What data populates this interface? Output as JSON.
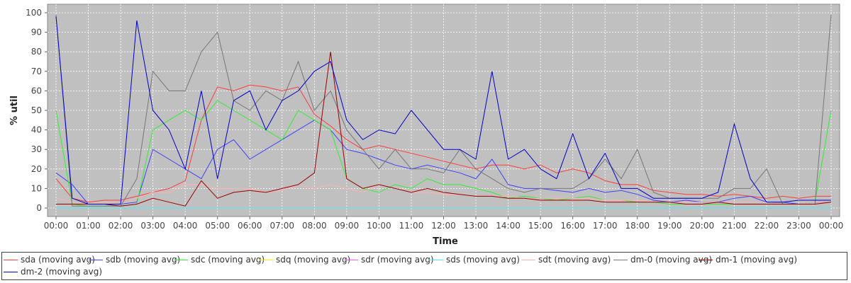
{
  "chart_data": {
    "type": "line",
    "title": "",
    "xlabel": "Time",
    "ylabel": "% util",
    "ylim": [
      0,
      100
    ],
    "xlim": [
      "00:00",
      "24:00"
    ],
    "grid": true,
    "legend_position": "bottom",
    "x_ticks": [
      "00:00",
      "01:00",
      "02:00",
      "03:00",
      "04:00",
      "05:00",
      "06:00",
      "07:00",
      "08:00",
      "09:00",
      "10:00",
      "11:00",
      "12:00",
      "13:00",
      "14:00",
      "15:00",
      "16:00",
      "17:00",
      "18:00",
      "19:00",
      "20:00",
      "21:00",
      "22:00",
      "23:00",
      "00:00"
    ],
    "y_ticks": [
      0,
      10,
      20,
      30,
      40,
      50,
      60,
      70,
      80,
      90,
      100
    ],
    "x": [
      "00:00",
      "00:30",
      "01:00",
      "01:30",
      "02:00",
      "02:30",
      "03:00",
      "03:30",
      "04:00",
      "04:30",
      "05:00",
      "05:30",
      "06:00",
      "06:30",
      "07:00",
      "07:30",
      "08:00",
      "08:30",
      "09:00",
      "09:30",
      "10:00",
      "10:30",
      "11:00",
      "11:30",
      "12:00",
      "12:30",
      "13:00",
      "13:30",
      "14:00",
      "14:30",
      "15:00",
      "15:30",
      "16:00",
      "16:30",
      "17:00",
      "17:30",
      "18:00",
      "18:30",
      "19:00",
      "19:30",
      "20:00",
      "20:30",
      "21:00",
      "21:30",
      "22:00",
      "22:30",
      "23:00",
      "23:30",
      "24:00"
    ],
    "series": [
      {
        "name": "sda (moving avg)",
        "color": "#ff3b3b",
        "values": [
          15,
          5,
          3,
          4,
          4,
          6,
          8,
          10,
          14,
          45,
          62,
          60,
          63,
          62,
          60,
          62,
          48,
          42,
          35,
          30,
          32,
          30,
          28,
          26,
          24,
          22,
          20,
          22,
          22,
          20,
          22,
          18,
          20,
          18,
          14,
          12,
          12,
          9,
          8,
          7,
          7,
          6,
          7,
          6,
          5,
          6,
          5,
          6,
          6
        ]
      },
      {
        "name": "sdb (moving avg)",
        "color": "#4040ff",
        "values": [
          18,
          12,
          2,
          2,
          2,
          3,
          30,
          25,
          20,
          15,
          30,
          35,
          25,
          30,
          35,
          40,
          45,
          40,
          30,
          28,
          25,
          22,
          20,
          22,
          20,
          18,
          15,
          25,
          12,
          10,
          10,
          9,
          8,
          10,
          8,
          9,
          7,
          4,
          3,
          4,
          3,
          3,
          5,
          6,
          3,
          3,
          2,
          3,
          3
        ]
      },
      {
        "name": "sdc (moving avg)",
        "color": "#33ee33",
        "values": [
          50,
          2,
          1,
          1,
          1,
          2,
          40,
          45,
          50,
          45,
          55,
          50,
          45,
          40,
          35,
          50,
          45,
          40,
          15,
          10,
          8,
          12,
          10,
          15,
          12,
          12,
          10,
          8,
          5,
          6,
          5,
          4,
          5,
          6,
          4,
          4,
          3,
          3,
          2,
          2,
          2,
          2,
          2,
          2,
          2,
          2,
          2,
          3,
          50
        ]
      },
      {
        "name": "sdq (moving avg)",
        "color": "#ffee00",
        "values": [
          0,
          0,
          0,
          0,
          0,
          0,
          0,
          0,
          0,
          0,
          0,
          0,
          0,
          0,
          0,
          0,
          0,
          0,
          0,
          0,
          0,
          0,
          0,
          0,
          0,
          0,
          0,
          0,
          0,
          0,
          0,
          0,
          0,
          0,
          0,
          0,
          0,
          0,
          0,
          0,
          0,
          0,
          0,
          0,
          0,
          0,
          0,
          0,
          0
        ]
      },
      {
        "name": "sdr (moving avg)",
        "color": "#ff55ff",
        "values": [
          0,
          0,
          0,
          0,
          0,
          0,
          0,
          0,
          0,
          0,
          0,
          0,
          0,
          0,
          0,
          0,
          0,
          0,
          0,
          0,
          0,
          0,
          0,
          0,
          0,
          0,
          0,
          0,
          0,
          0,
          0,
          0,
          0,
          0,
          0,
          0,
          0,
          0,
          0,
          0,
          0,
          0,
          0,
          0,
          0,
          0,
          0,
          0,
          0
        ]
      },
      {
        "name": "sds (moving avg)",
        "color": "#44eeff",
        "values": [
          0,
          0,
          0,
          0,
          0,
          0,
          0,
          0,
          0,
          0,
          0,
          0,
          0,
          0,
          0,
          0,
          0,
          0,
          0,
          0,
          0,
          0,
          0,
          0,
          0,
          0,
          0,
          0,
          0,
          0,
          0,
          0,
          0,
          0,
          0,
          0,
          0,
          0,
          0,
          0,
          0,
          0,
          0,
          0,
          0,
          0,
          0,
          0,
          0
        ]
      },
      {
        "name": "sdt (moving avg)",
        "color": "#ffb0b0",
        "values": [
          5,
          3,
          2,
          3,
          2,
          5,
          8,
          8,
          12,
          12,
          10,
          10,
          10,
          8,
          9,
          12,
          10,
          12,
          10,
          8,
          12,
          10,
          8,
          8,
          7,
          7,
          6,
          6,
          6,
          5,
          5,
          5,
          5,
          5,
          4,
          4,
          4,
          3,
          3,
          3,
          3,
          3,
          3,
          3,
          3,
          2,
          2,
          3,
          3
        ]
      },
      {
        "name": "dm-0 (moving avg)",
        "color": "#777777",
        "values": [
          99,
          1,
          1,
          1,
          1,
          15,
          70,
          60,
          60,
          80,
          90,
          55,
          50,
          60,
          55,
          75,
          50,
          60,
          40,
          30,
          20,
          30,
          20,
          20,
          18,
          30,
          20,
          15,
          10,
          8,
          10,
          10,
          10,
          15,
          25,
          15,
          30,
          8,
          5,
          5,
          5,
          5,
          10,
          10,
          20,
          2,
          2,
          2,
          99
        ]
      },
      {
        "name": "dm-1 (moving avg)",
        "color": "#990000",
        "values": [
          2,
          2,
          2,
          2,
          1,
          2,
          5,
          3,
          1,
          14,
          5,
          8,
          9,
          8,
          10,
          12,
          18,
          80,
          15,
          10,
          12,
          10,
          8,
          10,
          8,
          7,
          6,
          6,
          5,
          5,
          4,
          4,
          4,
          4,
          3,
          3,
          3,
          3,
          3,
          2,
          2,
          3,
          2,
          2,
          2,
          2,
          2,
          2,
          3
        ]
      },
      {
        "name": "dm-2 (moving avg)",
        "color": "#0000cc",
        "values": [
          98,
          5,
          2,
          2,
          2,
          96,
          50,
          40,
          20,
          60,
          15,
          55,
          60,
          40,
          55,
          60,
          70,
          75,
          45,
          35,
          40,
          38,
          50,
          40,
          30,
          30,
          25,
          70,
          25,
          30,
          20,
          15,
          38,
          15,
          28,
          10,
          10,
          5,
          5,
          5,
          5,
          8,
          43,
          15,
          3,
          3,
          4,
          4,
          4
        ]
      }
    ]
  }
}
